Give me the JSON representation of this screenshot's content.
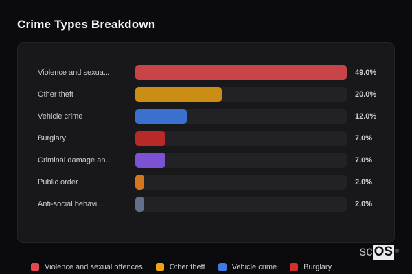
{
  "page": {
    "title": "Crime Types Breakdown"
  },
  "colors": {
    "page_bg": "#0b0b0e",
    "card_bg": "#18181b",
    "card_border": "#232328",
    "track": "#222226",
    "title_text": "#f4f4f6",
    "label_text": "#c9cbd1",
    "value_text": "#cbcdd3"
  },
  "chart_data": {
    "type": "bar",
    "orientation": "horizontal",
    "title": "Crime Types Breakdown",
    "categories": [
      "Violence and sexua...",
      "Other theft",
      "Vehicle crime",
      "Burglary",
      "Criminal damage an...",
      "Public order",
      "Anti-social behavi..."
    ],
    "values": [
      49,
      20,
      12,
      7,
      7,
      2,
      2
    ],
    "value_labels": [
      "49.0%",
      "20.0%",
      "12.0%",
      "7.0%",
      "7.0%",
      "2.0%",
      "2.0%"
    ],
    "bar_colors": [
      "#c94449",
      "#c98e13",
      "#3b70cf",
      "#b82a28",
      "#7b52d4",
      "#d3761e",
      "#64708a"
    ],
    "xlim": [
      0,
      49
    ],
    "scale": "relative-to-max",
    "grid": false,
    "legend_position": "bottom"
  },
  "legend": {
    "items": [
      {
        "label": "Violence and sexual offences",
        "color": "#e2484d"
      },
      {
        "label": "Other theft",
        "color": "#efa40f"
      },
      {
        "label": "Vehicle crime",
        "color": "#3f7ae0"
      },
      {
        "label": "Burglary",
        "color": "#d2302e"
      }
    ]
  },
  "logo": {
    "prefix": "sc",
    "suffix": "OS",
    "registered": "®"
  }
}
